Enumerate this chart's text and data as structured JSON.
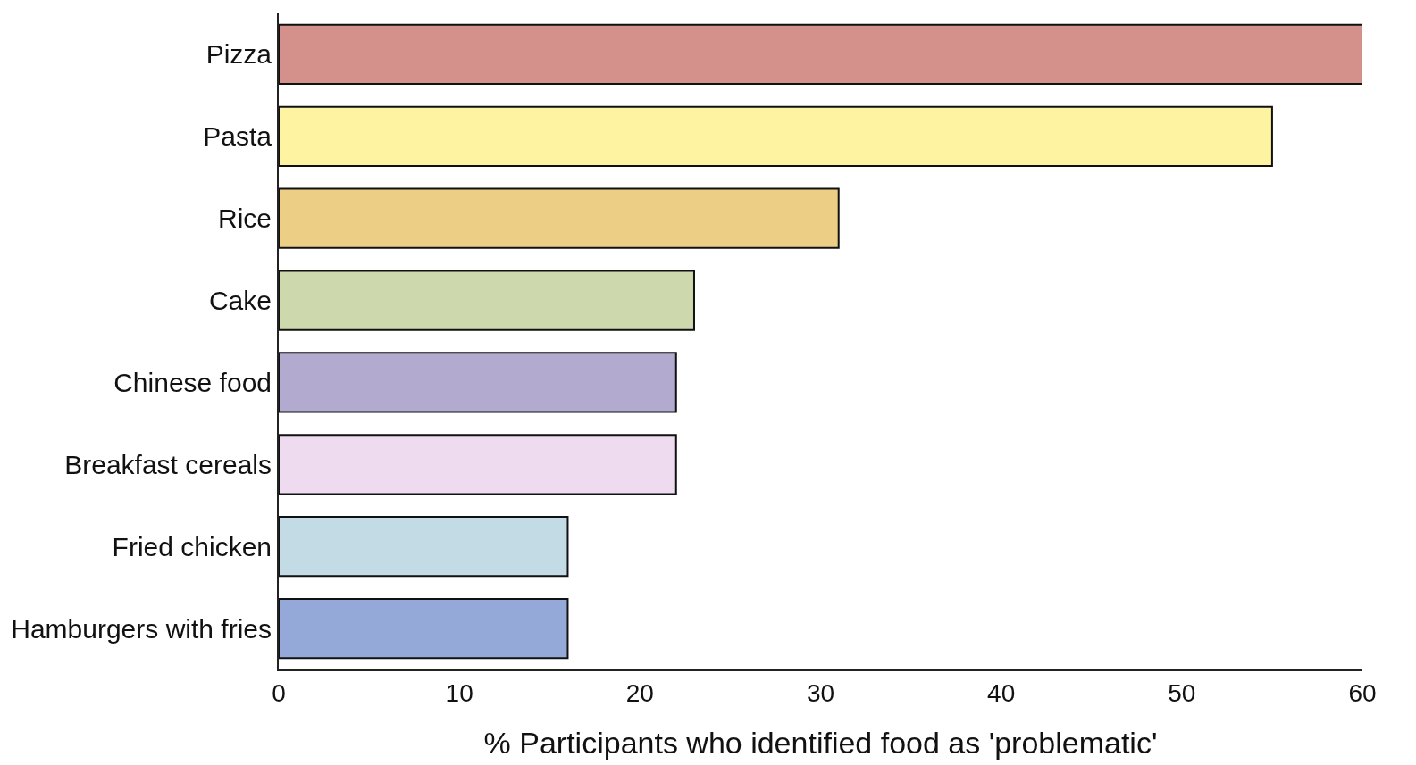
{
  "chart_data": {
    "type": "bar",
    "orientation": "horizontal",
    "xlabel": "% Participants who identified food as 'problematic'",
    "categories": [
      "Pizza",
      "Pasta",
      "Rice",
      "Cake",
      "Chinese food",
      "Breakfast cereals",
      "Fried chicken",
      "Hamburgers with fries"
    ],
    "values": [
      60,
      55,
      31,
      23,
      22,
      22,
      16,
      16
    ],
    "colors": [
      "#d4918c",
      "#fdf3a0",
      "#ecce84",
      "#cdd9ac",
      "#b3aad0",
      "#eedbf0",
      "#c2dbe4",
      "#94a9d8"
    ],
    "xlim": [
      0,
      60
    ],
    "xticks": [
      0,
      10,
      20,
      30,
      40,
      50,
      60
    ]
  }
}
